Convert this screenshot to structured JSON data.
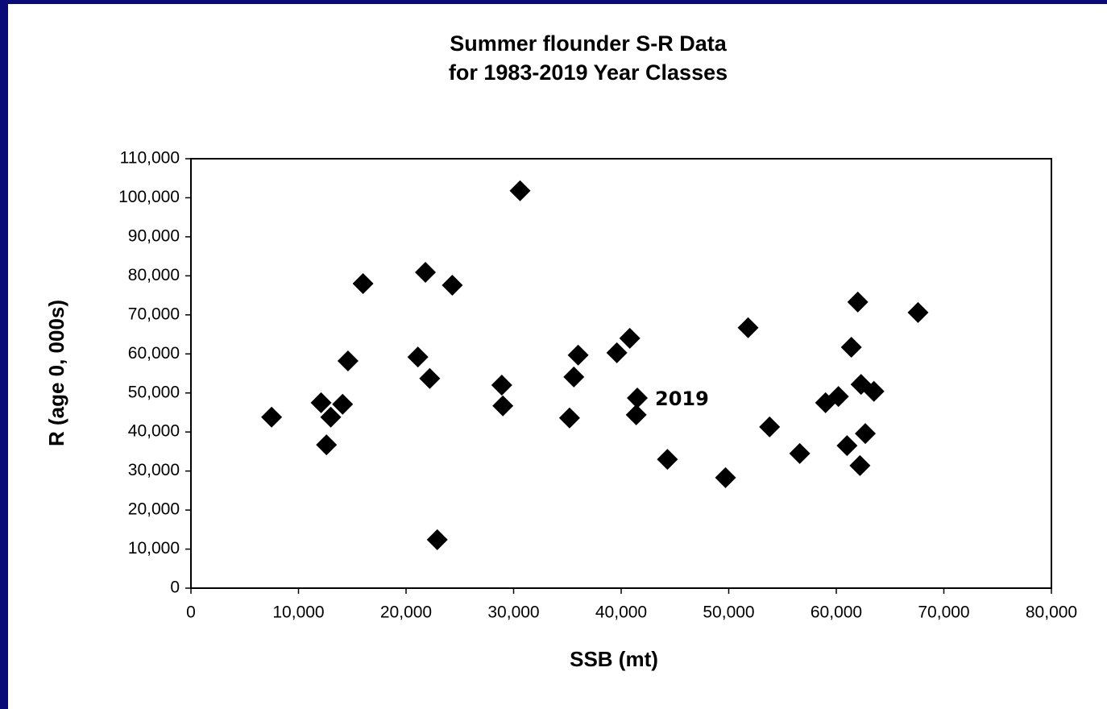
{
  "chart_data": {
    "type": "scatter",
    "title": "Summer flounder S-R Data",
    "subtitle": "for 1983-2019 Year Classes",
    "x_label": "SSB (mt)",
    "y_label": "R (age 0, 000s)",
    "xlim": [
      0,
      80000
    ],
    "ylim": [
      0,
      110000
    ],
    "xticks": [
      0,
      {
        "value": 10000,
        "label": "10,000"
      },
      {
        "value": 20000,
        "label": "20,000"
      },
      {
        "value": 30000,
        "label": "30,000"
      },
      {
        "value": 40000,
        "label": "40,000"
      },
      {
        "value": 50000,
        "label": "50,000"
      },
      {
        "value": 60000,
        "label": "60,000"
      },
      {
        "value": 70000,
        "label": "70,000"
      },
      {
        "value": 80000,
        "label": "80,000"
      }
    ],
    "yticks": [
      0,
      {
        "value": 10000,
        "label": "10,000"
      },
      {
        "value": 20000,
        "label": "20,000"
      },
      {
        "value": 30000,
        "label": "30,000"
      },
      {
        "value": 40000,
        "label": "40,000"
      },
      {
        "value": 50000,
        "label": "50,000"
      },
      {
        "value": 60000,
        "label": "60,000"
      },
      {
        "value": 70000,
        "label": "70,000"
      },
      {
        "value": 80000,
        "label": "80,000"
      },
      {
        "value": 90000,
        "label": "90,000"
      },
      {
        "value": 100000,
        "label": "100,000"
      },
      {
        "value": 110000,
        "label": "110,000"
      }
    ],
    "color": "#000000",
    "x": [
      7500,
      12100,
      12600,
      13000,
      14100,
      14600,
      16000,
      21100,
      21800,
      22200,
      22900,
      24300,
      28900,
      29000,
      30600,
      35200,
      35600,
      36000,
      39600,
      40800,
      41400,
      44300,
      49700,
      51800,
      53800,
      56600,
      59000,
      60200,
      61000,
      61400,
      62000,
      62200,
      62300,
      62700,
      63500,
      67600,
      41500
    ],
    "values": [
      43800,
      47500,
      36700,
      43800,
      47100,
      58200,
      78000,
      59200,
      80900,
      53700,
      12400,
      77600,
      52000,
      46700,
      101800,
      43600,
      54100,
      59700,
      60300,
      64000,
      44400,
      33000,
      28300,
      66700,
      41300,
      34500,
      47500,
      49100,
      36500,
      61700,
      73300,
      31400,
      52200,
      39600,
      50400,
      70600,
      48700
    ],
    "annotations": [
      {
        "text": "2019"
      }
    ]
  }
}
